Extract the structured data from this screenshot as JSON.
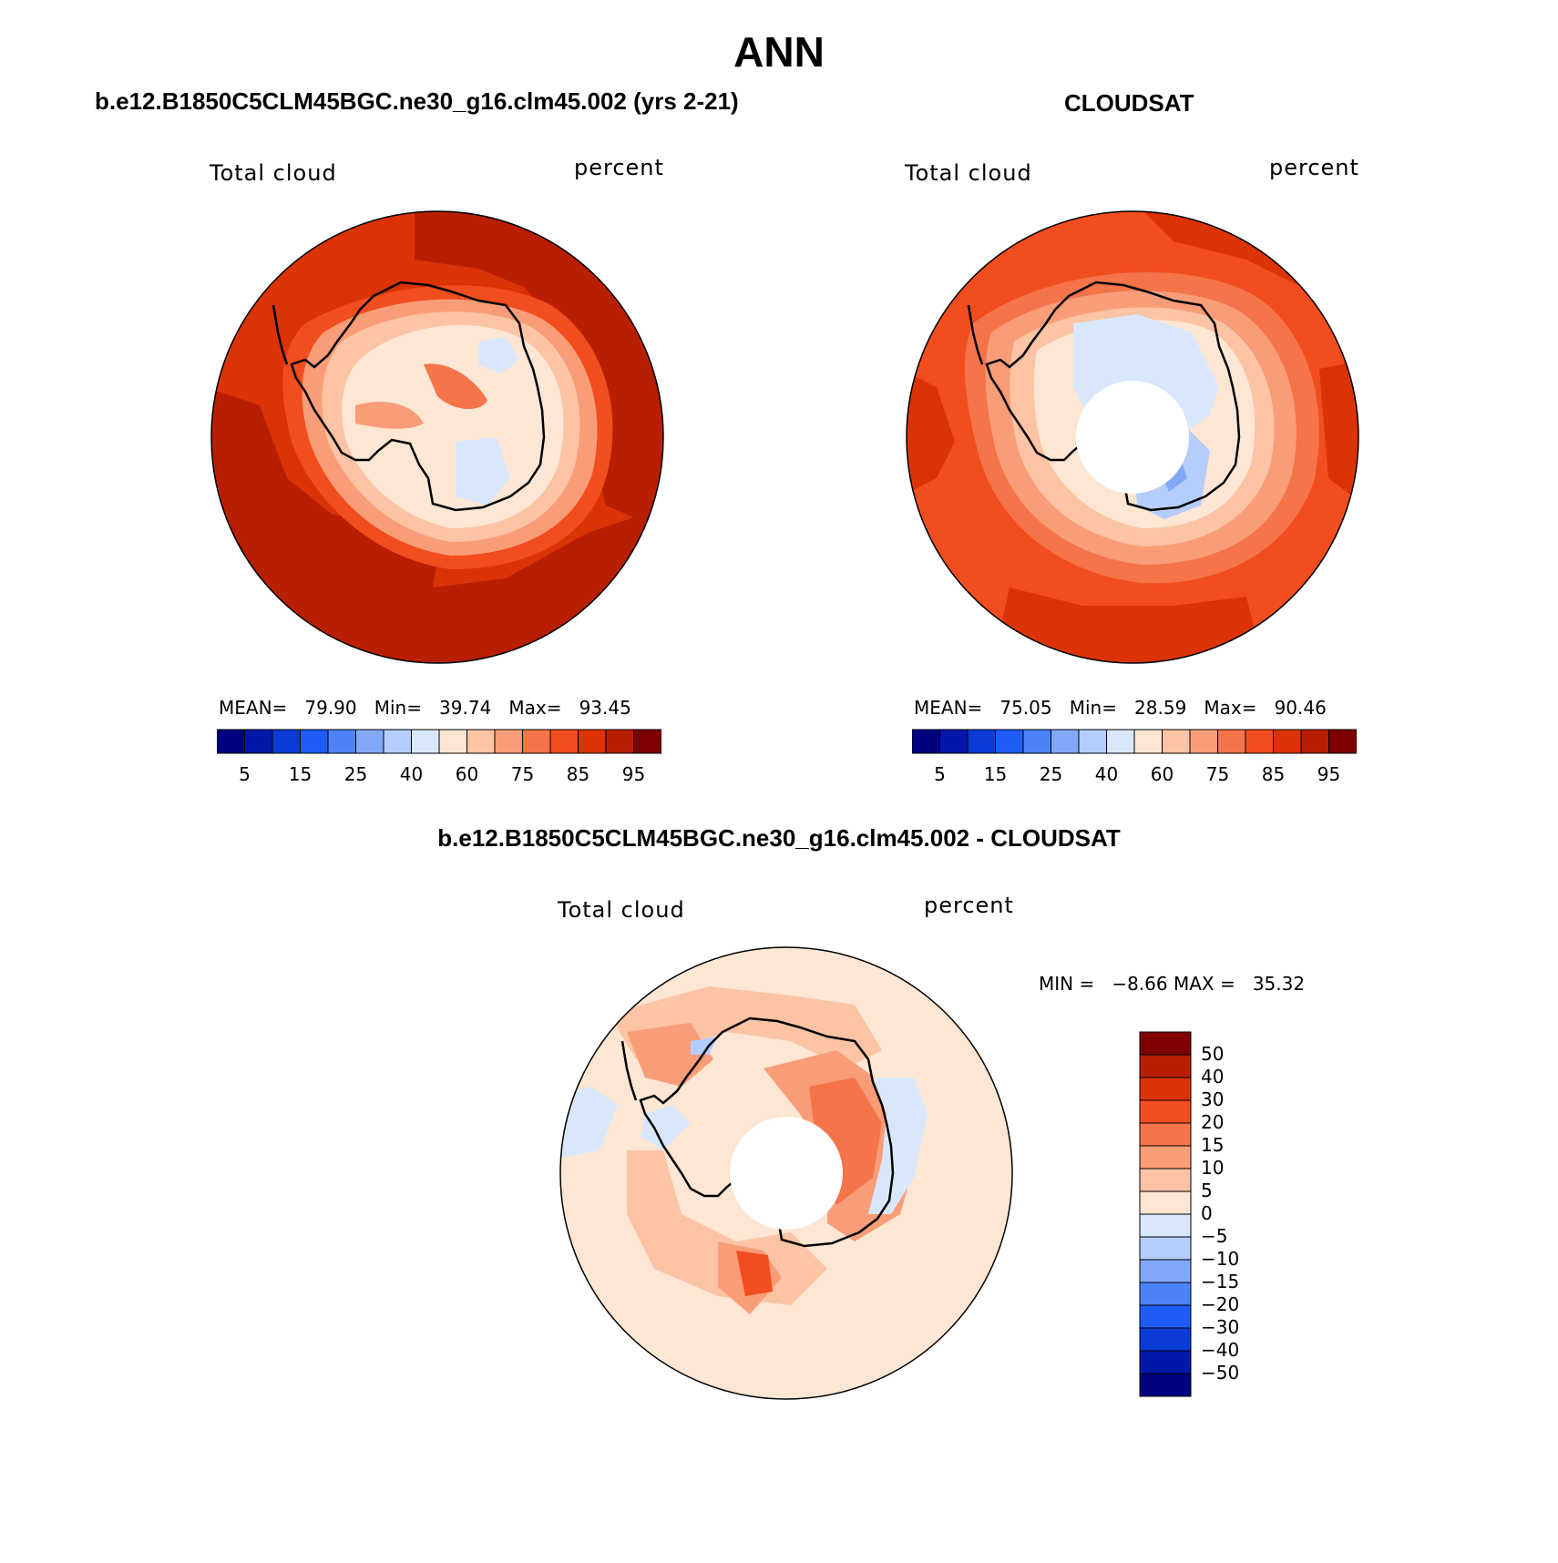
{
  "title": "ANN",
  "panels": [
    {
      "id": "model",
      "title": "b.e12.B1850C5CLM45BGC.ne30_g16.clm45.002 (yrs 2-21)",
      "left_label": "Total cloud",
      "right_label": "percent",
      "stats": {
        "mean_label": "MEAN=",
        "mean": "79.90",
        "min_label": "Min=",
        "min": "39.74",
        "max_label": "Max=",
        "max": "93.45"
      }
    },
    {
      "id": "obs",
      "title": "CLOUDSAT",
      "left_label": "Total cloud",
      "right_label": "percent",
      "stats": {
        "mean_label": "MEAN=",
        "mean": "75.05",
        "min_label": "Min=",
        "min": "28.59",
        "max_label": "Max=",
        "max": "90.46"
      }
    }
  ],
  "abs_colorbar": {
    "colors": [
      "#000080",
      "#0018a8",
      "#0a3bd6",
      "#1e5cf5",
      "#4b82f7",
      "#82a8f8",
      "#b4cdfb",
      "#d9e7fc",
      "#fde6d3",
      "#fcc3a4",
      "#f99d78",
      "#f5744a",
      "#f24d1e",
      "#db3306",
      "#b81f00",
      "#7f0000"
    ],
    "ticks": [
      "5",
      "15",
      "25",
      "40",
      "60",
      "75",
      "85",
      "95"
    ]
  },
  "diff": {
    "title": "b.e12.B1850C5CLM45BGC.ne30_g16.clm45.002 - CLOUDSAT",
    "left_label": "Total cloud",
    "right_label": "percent",
    "minmax": {
      "min_label": "MIN =",
      "min": "−8.66",
      "max_label": "MAX =",
      "max": "35.32"
    },
    "colorbar": {
      "colors_top_to_bottom": [
        "#7f0000",
        "#b81f00",
        "#db3306",
        "#f24d1e",
        "#f5744a",
        "#f99d78",
        "#fcc3a4",
        "#fde6d3",
        "#d9e7fc",
        "#b4cdfb",
        "#82a8f8",
        "#4b82f7",
        "#1e5cf5",
        "#0a3bd6",
        "#0018a8",
        "#000080"
      ],
      "ticks": [
        "50",
        "40",
        "30",
        "20",
        "15",
        "10",
        "5",
        "0",
        "−5",
        "−10",
        "−15",
        "−20",
        "−30",
        "−40",
        "−50"
      ]
    }
  }
}
